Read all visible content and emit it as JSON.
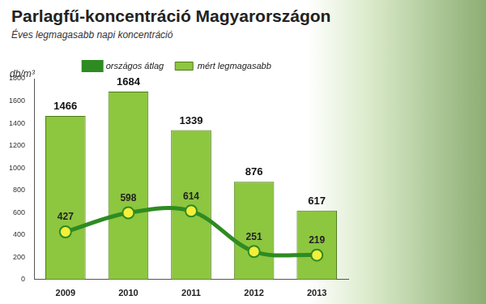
{
  "chart_data": {
    "type": "bar",
    "title": "Parlagfű-koncentráció Magyarországon",
    "subtitle": "Éves legmagasabb napi koncentráció",
    "y_label": "db/m³",
    "categories": [
      "2009",
      "2010",
      "2011",
      "2012",
      "2013"
    ],
    "series": [
      {
        "name": "mért legmagasabb",
        "type": "bar",
        "color": "#8dc63f",
        "values": [
          1466,
          1684,
          1339,
          876,
          617
        ]
      },
      {
        "name": "országos átlag",
        "type": "line",
        "color": "#2e8b22",
        "marker": "circle",
        "values": [
          427,
          598,
          614,
          251,
          219
        ]
      }
    ],
    "ylim": [
      0,
      1800
    ],
    "yticks": [
      0,
      200,
      400,
      600,
      800,
      1000,
      1200,
      1400,
      1600,
      1800
    ],
    "grid": false,
    "legend": "top",
    "data_labels": true
  }
}
